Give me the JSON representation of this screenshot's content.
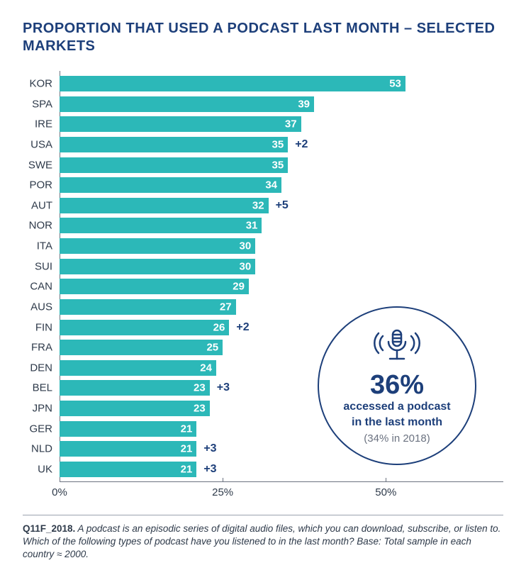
{
  "title": "PROPORTION THAT USED A PODCAST LAST MONTH – SELECTED MARKETS",
  "chart": {
    "type": "bar-horizontal",
    "x_max_pct": 68,
    "bar_color": "#2cb8b8",
    "value_text_color": "#ffffff",
    "delta_color": "#1d3f7a",
    "axis_color": "#6b7280",
    "label_color": "#2e3a4a",
    "ticks": [
      {
        "pct": 0,
        "label": "0%"
      },
      {
        "pct": 25,
        "label": "25%"
      },
      {
        "pct": 50,
        "label": "50%"
      }
    ],
    "rows": [
      {
        "label": "KOR",
        "value": 53,
        "delta": null
      },
      {
        "label": "SPA",
        "value": 39,
        "delta": null
      },
      {
        "label": "IRE",
        "value": 37,
        "delta": null
      },
      {
        "label": "USA",
        "value": 35,
        "delta": "+2"
      },
      {
        "label": "SWE",
        "value": 35,
        "delta": null
      },
      {
        "label": "POR",
        "value": 34,
        "delta": null
      },
      {
        "label": "AUT",
        "value": 32,
        "delta": "+5"
      },
      {
        "label": "NOR",
        "value": 31,
        "delta": null
      },
      {
        "label": "ITA",
        "value": 30,
        "delta": null
      },
      {
        "label": "SUI",
        "value": 30,
        "delta": null
      },
      {
        "label": "CAN",
        "value": 29,
        "delta": null
      },
      {
        "label": "AUS",
        "value": 27,
        "delta": null
      },
      {
        "label": "FIN",
        "value": 26,
        "delta": "+2"
      },
      {
        "label": "FRA",
        "value": 25,
        "delta": null
      },
      {
        "label": "DEN",
        "value": 24,
        "delta": null
      },
      {
        "label": "BEL",
        "value": 23,
        "delta": "+3"
      },
      {
        "label": "JPN",
        "value": 23,
        "delta": null
      },
      {
        "label": "GER",
        "value": 21,
        "delta": null
      },
      {
        "label": "NLD",
        "value": 21,
        "delta": "+3"
      },
      {
        "label": "UK",
        "value": 21,
        "delta": "+3"
      }
    ]
  },
  "callout": {
    "stat": "36%",
    "line1": "accessed a podcast",
    "line2": "in the last month",
    "sub": "(34% in 2018)",
    "circle_color": "#1d3f7a",
    "icon": "microphone-broadcast-icon"
  },
  "footnote": {
    "code": "Q11F_2018.",
    "text": " A podcast is an episodic series of digital audio files, which you can download, subscribe, or listen to. Which of the following types of podcast have you listened to in the last month? ",
    "base": "Base: Total sample in each country ≈ 2000."
  }
}
